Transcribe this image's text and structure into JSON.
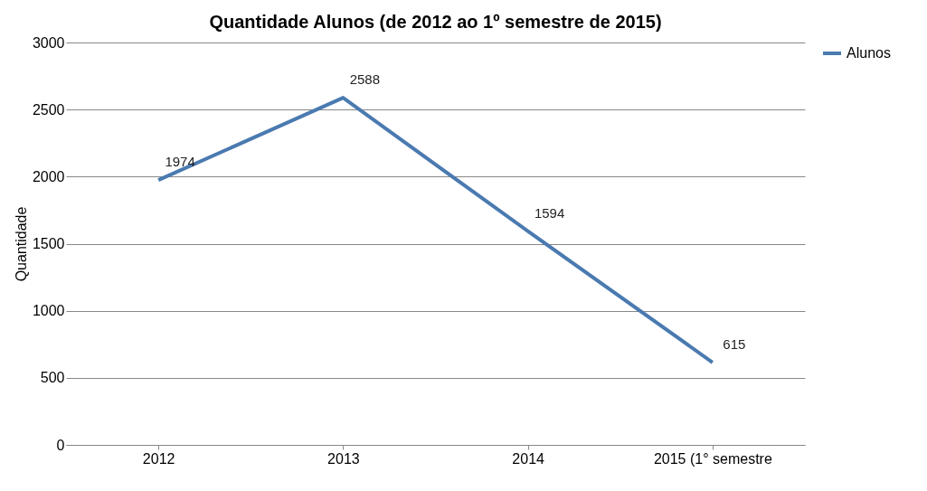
{
  "chart_data": {
    "type": "line",
    "title": "Quantidade Alunos (de 2012 ao 1º semestre de 2015)",
    "ylabel": "Quantidade",
    "categories": [
      "2012",
      "2013",
      "2014",
      "2015 (1° semestre"
    ],
    "series": [
      {
        "name": "Alunos",
        "color": "#4a7ab0",
        "values": [
          1974,
          2588,
          1594,
          615
        ]
      }
    ],
    "ylim": [
      0,
      3000
    ],
    "yticks": [
      0,
      500,
      1000,
      1500,
      2000,
      2500,
      3000
    ],
    "grid": "y",
    "legend": "right",
    "data_labels": true,
    "marker": "none",
    "line_style": "solid"
  }
}
